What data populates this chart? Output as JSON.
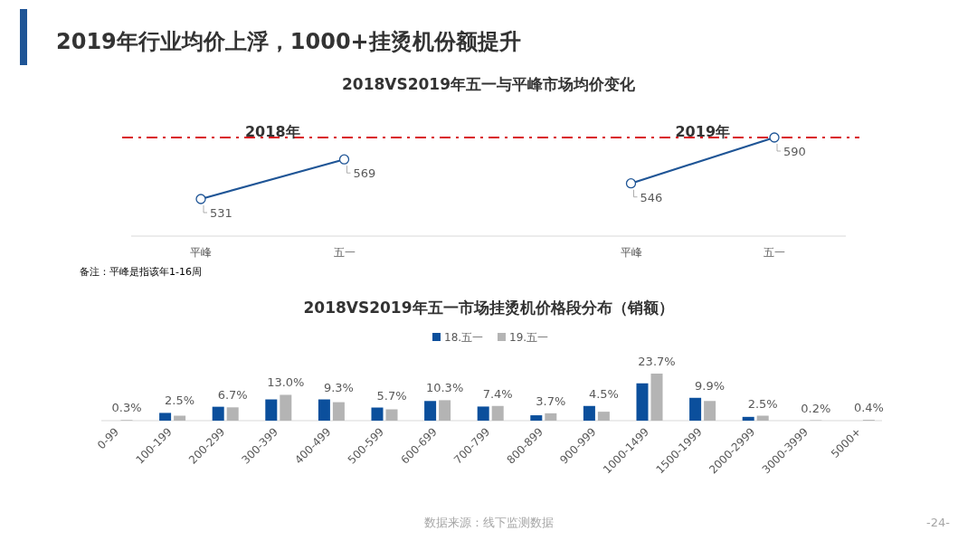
{
  "chart_data": [
    {
      "type": "line",
      "title": "2019年行业均价上浮，1000+挂烫机份额提升",
      "subtitle": "2018VS2019年五一与平峰市场均价变化",
      "categories": [
        "平峰",
        "五一",
        null,
        "平峰",
        "五一"
      ],
      "series": [
        {
          "name": "2018年",
          "color": "#1f5596",
          "values": [
            531,
            569,
            null,
            null,
            null
          ]
        },
        {
          "name": "2019年",
          "color": "#1f5596",
          "values": [
            null,
            null,
            null,
            546,
            590
          ]
        }
      ],
      "marker": "circle",
      "data_labels": true,
      "ref_lines": [
        {
          "axis": "y",
          "value": 590,
          "color": "#d9141e",
          "line_style": "dashdot"
        }
      ],
      "annotations": [
        "备注：平峰是指该年1-16周"
      ]
    },
    {
      "type": "bar",
      "title": "2018VS2019年五一市场挂烫机价格段分布（销额）",
      "categories": [
        "0-99",
        "100-199",
        "200-299",
        "300-399",
        "400-499",
        "500-599",
        "600-699",
        "700-799",
        "800-899",
        "900-999",
        "1000-1499",
        "1500-1999",
        "2000-2999",
        "3000-3999",
        "5000+"
      ],
      "series": [
        {
          "name": "18.五一",
          "color": "#0b4f9c",
          "values": [
            null,
            3.9,
            7.0,
            10.7,
            10.7,
            6.6,
            9.9,
            7.1,
            2.7,
            7.4,
            18.8,
            11.5,
            1.9,
            null,
            null
          ]
        },
        {
          "name": "19.五一",
          "color": "#b4b4b4",
          "values": [
            0.3,
            2.5,
            6.7,
            13.0,
            9.3,
            5.7,
            10.3,
            7.4,
            3.7,
            4.5,
            23.7,
            9.9,
            2.5,
            0.2,
            0.4
          ],
          "value_labels": [
            "0.3%",
            "2.5%",
            "6.7%",
            "13.0%",
            "9.3%",
            "5.7%",
            "10.3%",
            "7.4%",
            "3.7%",
            "4.5%",
            "23.7%",
            "9.9%",
            "2.5%",
            "0.2%",
            "0.4%"
          ]
        }
      ],
      "legend": "top",
      "annotations": [
        "数据来源：线下监测数据",
        "-24-"
      ]
    }
  ]
}
